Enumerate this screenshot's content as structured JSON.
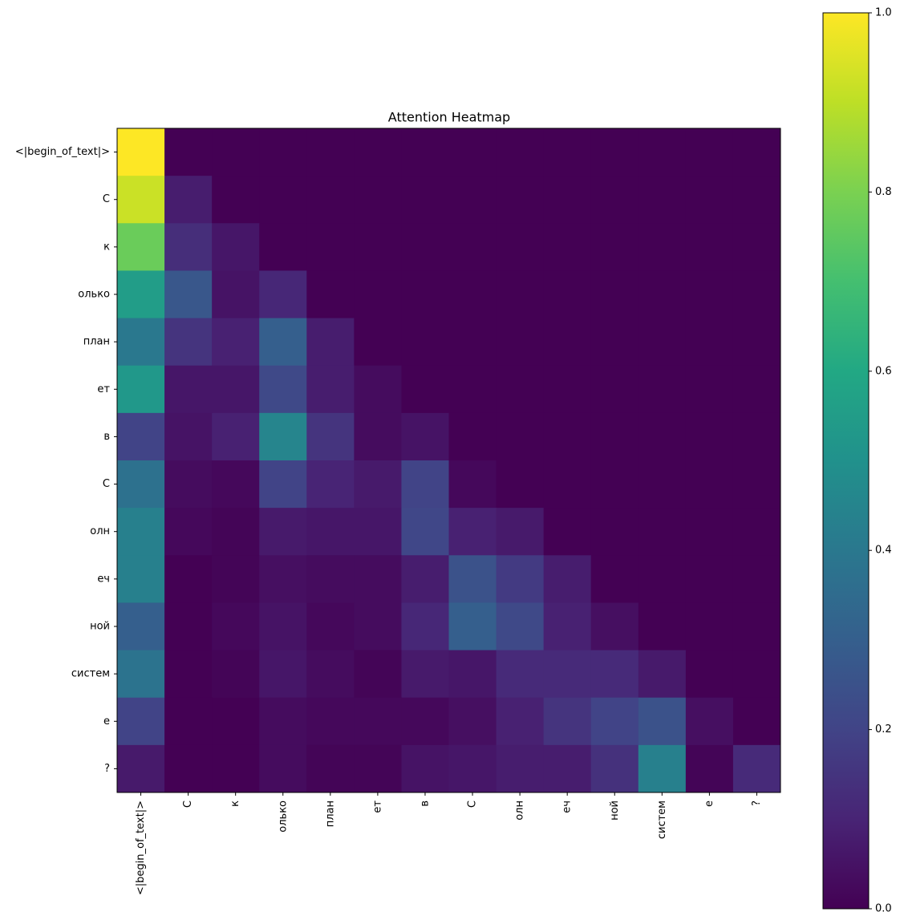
{
  "chart_data": {
    "type": "heatmap",
    "title": "Attention Heatmap",
    "colormap": "viridis",
    "x_categories": [
      "<|begin_of_text|>",
      "С",
      "к",
      "олько",
      "план",
      "ет",
      "в",
      "С",
      "олн",
      "еч",
      "ной",
      "систем",
      "е",
      "?"
    ],
    "y_categories": [
      "<|begin_of_text|>",
      "С",
      "к",
      "олько",
      "план",
      "ет",
      "в",
      "С",
      "олн",
      "еч",
      "ной",
      "систем",
      "е",
      "?"
    ],
    "values": [
      [
        1.0,
        0,
        0,
        0,
        0,
        0,
        0,
        0,
        0,
        0,
        0,
        0,
        0,
        0
      ],
      [
        0.92,
        0.08,
        0,
        0,
        0,
        0,
        0,
        0,
        0,
        0,
        0,
        0,
        0,
        0
      ],
      [
        0.77,
        0.13,
        0.06,
        0,
        0,
        0,
        0,
        0,
        0,
        0,
        0,
        0,
        0,
        0
      ],
      [
        0.55,
        0.27,
        0.05,
        0.11,
        0,
        0,
        0,
        0,
        0,
        0,
        0,
        0,
        0,
        0
      ],
      [
        0.4,
        0.15,
        0.09,
        0.3,
        0.08,
        0,
        0,
        0,
        0,
        0,
        0,
        0,
        0,
        0
      ],
      [
        0.53,
        0.06,
        0.06,
        0.22,
        0.08,
        0.03,
        0,
        0,
        0,
        0,
        0,
        0,
        0,
        0
      ],
      [
        0.2,
        0.05,
        0.09,
        0.45,
        0.15,
        0.03,
        0.05,
        0,
        0,
        0,
        0,
        0,
        0,
        0
      ],
      [
        0.37,
        0.03,
        0.02,
        0.2,
        0.1,
        0.07,
        0.2,
        0.02,
        0,
        0,
        0,
        0,
        0,
        0
      ],
      [
        0.43,
        0.02,
        0.01,
        0.07,
        0.06,
        0.06,
        0.21,
        0.09,
        0.07,
        0,
        0,
        0,
        0,
        0
      ],
      [
        0.43,
        0,
        0.01,
        0.04,
        0.03,
        0.03,
        0.08,
        0.25,
        0.17,
        0.08,
        0,
        0,
        0,
        0
      ],
      [
        0.3,
        0,
        0.02,
        0.05,
        0.02,
        0.03,
        0.11,
        0.3,
        0.22,
        0.09,
        0.04,
        0,
        0,
        0
      ],
      [
        0.38,
        0,
        0.01,
        0.06,
        0.03,
        0.01,
        0.07,
        0.06,
        0.12,
        0.12,
        0.12,
        0.07,
        0,
        0
      ],
      [
        0.2,
        0,
        0,
        0.03,
        0.02,
        0.02,
        0.02,
        0.04,
        0.09,
        0.15,
        0.2,
        0.25,
        0.04,
        0
      ],
      [
        0.07,
        0,
        0,
        0.03,
        0.01,
        0.01,
        0.05,
        0.06,
        0.08,
        0.08,
        0.14,
        0.43,
        0.01,
        0.12
      ]
    ],
    "zlim": [
      0,
      1
    ],
    "zticks": [
      {
        "value": 0,
        "label": "0.0"
      },
      0.2,
      0.4,
      0.6,
      0.8,
      {
        "value": 1,
        "label": "1.0"
      }
    ]
  }
}
